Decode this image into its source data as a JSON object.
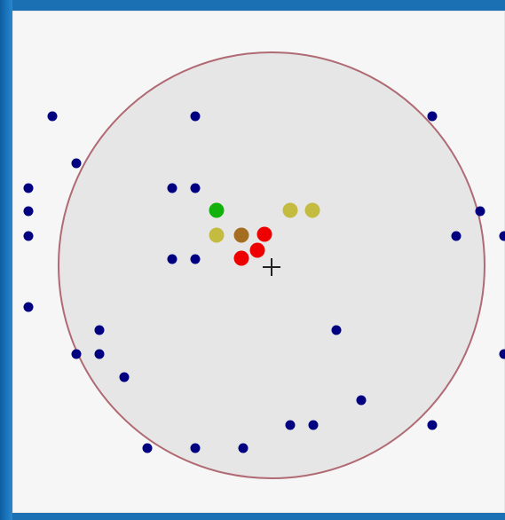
{
  "colors": {
    "window_bg": "#1b6fb3",
    "panel_bg": "#f6f6f6",
    "circle_fill": "#e6e6e6",
    "circle_stroke": "#b06a73",
    "point_blue": "#000080",
    "point_green": "#12b20c",
    "point_olive": "#c4bc40",
    "point_brown": "#a46d22",
    "point_red": "#ef0000",
    "cursor": "#222222"
  },
  "icons": {
    "cursor": "crosshair-cursor-icon"
  }
}
